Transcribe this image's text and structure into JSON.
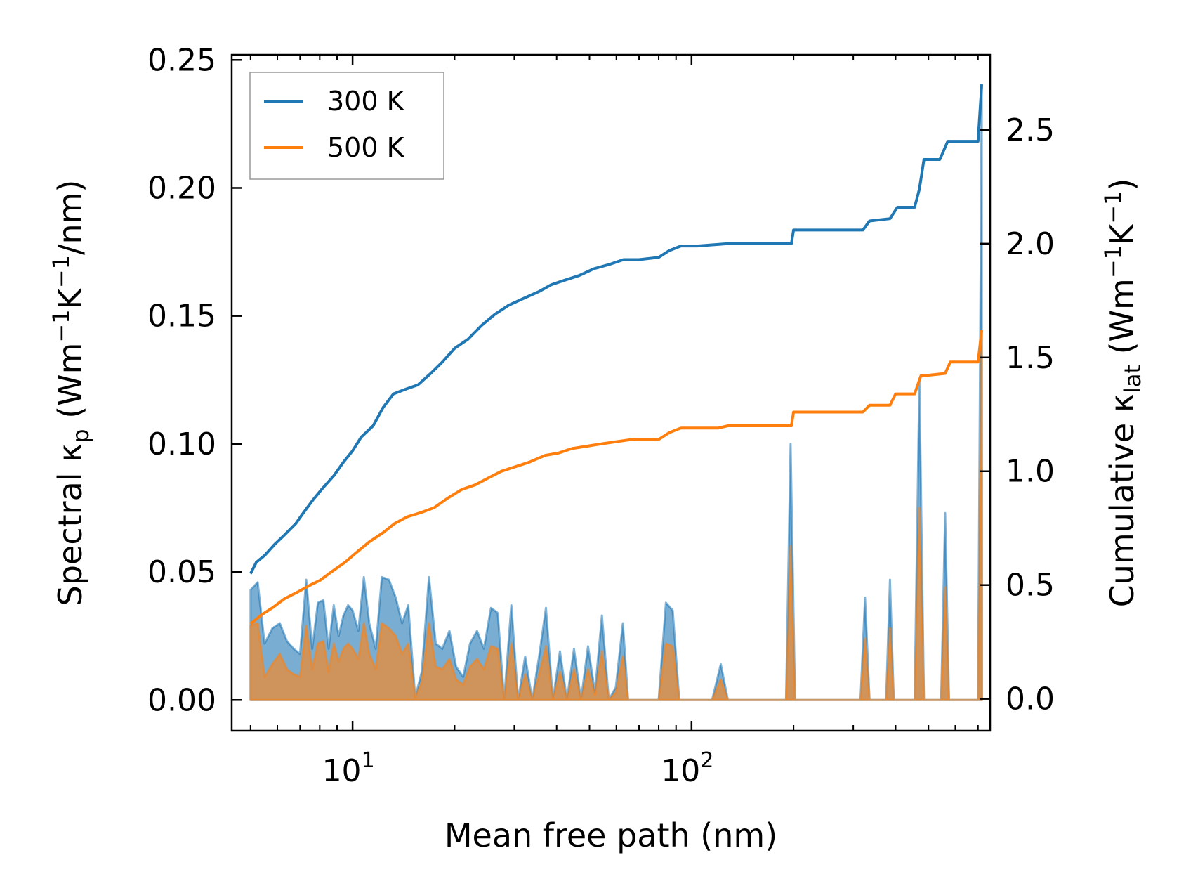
{
  "chart_data": {
    "type": "line",
    "xscale": "log",
    "xlim": [
      4.4,
      760
    ],
    "xlabel": "Mean free path (nm)",
    "x_ticks": [
      {
        "value": 10,
        "label": "10",
        "exp": "1"
      },
      {
        "value": 100,
        "label": "10",
        "exp": "2"
      }
    ],
    "left_axis": {
      "label_main": "Spectral κ",
      "label_sub": "p",
      "label_rest": " (Wm",
      "label_sup1": "−1",
      "label_mid": "K",
      "label_sup2": "−1",
      "label_end": "/nm)",
      "ylim": [
        -0.012,
        0.252
      ],
      "ticks": [
        {
          "value": 0.0,
          "label": "0.00"
        },
        {
          "value": 0.05,
          "label": "0.05"
        },
        {
          "value": 0.1,
          "label": "0.10"
        },
        {
          "value": 0.15,
          "label": "0.15"
        },
        {
          "value": 0.2,
          "label": "0.20"
        },
        {
          "value": 0.25,
          "label": "0.25"
        }
      ]
    },
    "right_axis": {
      "label_main": "Cumulative κ",
      "label_sub": "lat",
      "label_rest": " (Wm",
      "label_sup1": "−1",
      "label_mid": "K",
      "label_sup2": "−1",
      "label_end": ")",
      "ylim": [
        -0.14,
        2.83
      ],
      "ticks": [
        {
          "value": 0.0,
          "label": "0.0"
        },
        {
          "value": 0.5,
          "label": "0.5"
        },
        {
          "value": 1.0,
          "label": "1.0"
        },
        {
          "value": 1.5,
          "label": "1.5"
        },
        {
          "value": 2.0,
          "label": "2.0"
        },
        {
          "value": 2.5,
          "label": "2.5"
        }
      ]
    },
    "legend": {
      "position": "top-left"
    },
    "colors": {
      "s300": "#1f77b4",
      "s500": "#ff7f0e",
      "spec500_fill": "#d7914e"
    },
    "series": [
      {
        "name": "300 K",
        "color": "#1f77b4",
        "axis": "right",
        "kind": "cumulative",
        "points": [
          [
            5.0,
            0.55
          ],
          [
            5.2,
            0.6
          ],
          [
            5.5,
            0.63
          ],
          [
            5.9,
            0.68
          ],
          [
            6.3,
            0.72
          ],
          [
            6.8,
            0.77
          ],
          [
            7.1,
            0.81
          ],
          [
            7.6,
            0.87
          ],
          [
            8.1,
            0.92
          ],
          [
            8.8,
            0.98
          ],
          [
            9.4,
            1.04
          ],
          [
            10.0,
            1.09
          ],
          [
            10.6,
            1.15
          ],
          [
            11.5,
            1.2
          ],
          [
            12.3,
            1.28
          ],
          [
            13.2,
            1.34
          ],
          [
            14.3,
            1.36
          ],
          [
            15.6,
            1.38
          ],
          [
            17.0,
            1.43
          ],
          [
            18.4,
            1.48
          ],
          [
            20.0,
            1.54
          ],
          [
            21.9,
            1.58
          ],
          [
            24.0,
            1.64
          ],
          [
            26.3,
            1.69
          ],
          [
            28.9,
            1.73
          ],
          [
            32.0,
            1.76
          ],
          [
            35.5,
            1.79
          ],
          [
            38.6,
            1.82
          ],
          [
            42.3,
            1.84
          ],
          [
            46.6,
            1.86
          ],
          [
            51.5,
            1.89
          ],
          [
            57.5,
            1.91
          ],
          [
            63.0,
            1.93
          ],
          [
            70.0,
            1.93
          ],
          [
            80.0,
            1.94
          ],
          [
            86.0,
            1.97
          ],
          [
            93.0,
            1.99
          ],
          [
            104.0,
            1.99
          ],
          [
            128.0,
            2.0
          ],
          [
            160.0,
            2.0
          ],
          [
            197.0,
            2.0
          ],
          [
            200.0,
            2.06
          ],
          [
            250.0,
            2.06
          ],
          [
            320.0,
            2.06
          ],
          [
            335.0,
            2.1
          ],
          [
            385.0,
            2.11
          ],
          [
            405.0,
            2.16
          ],
          [
            455.0,
            2.16
          ],
          [
            470.0,
            2.24
          ],
          [
            485.0,
            2.37
          ],
          [
            540.0,
            2.37
          ],
          [
            570.0,
            2.45
          ],
          [
            700.0,
            2.45
          ],
          [
            718.0,
            2.7
          ]
        ]
      },
      {
        "name": "500 K",
        "color": "#ff7f0e",
        "axis": "right",
        "kind": "cumulative",
        "points": [
          [
            5.0,
            0.33
          ],
          [
            5.4,
            0.37
          ],
          [
            5.8,
            0.4
          ],
          [
            6.3,
            0.44
          ],
          [
            6.9,
            0.47
          ],
          [
            7.5,
            0.5
          ],
          [
            8.0,
            0.52
          ],
          [
            8.7,
            0.56
          ],
          [
            9.5,
            0.6
          ],
          [
            10.2,
            0.64
          ],
          [
            11.2,
            0.69
          ],
          [
            12.3,
            0.73
          ],
          [
            13.3,
            0.77
          ],
          [
            14.5,
            0.8
          ],
          [
            16.0,
            0.82
          ],
          [
            17.4,
            0.84
          ],
          [
            19.0,
            0.88
          ],
          [
            21.0,
            0.92
          ],
          [
            23.0,
            0.94
          ],
          [
            25.1,
            0.97
          ],
          [
            27.5,
            1.0
          ],
          [
            30.2,
            1.02
          ],
          [
            33.2,
            1.04
          ],
          [
            37.0,
            1.07
          ],
          [
            40.5,
            1.08
          ],
          [
            44.4,
            1.1
          ],
          [
            49.0,
            1.11
          ],
          [
            54.0,
            1.12
          ],
          [
            60.0,
            1.13
          ],
          [
            67.0,
            1.14
          ],
          [
            80.0,
            1.14
          ],
          [
            86.0,
            1.17
          ],
          [
            93.0,
            1.19
          ],
          [
            120.0,
            1.19
          ],
          [
            128.0,
            1.2
          ],
          [
            197.0,
            1.2
          ],
          [
            200.0,
            1.26
          ],
          [
            320.0,
            1.26
          ],
          [
            335.0,
            1.29
          ],
          [
            385.0,
            1.29
          ],
          [
            400.0,
            1.34
          ],
          [
            455.0,
            1.34
          ],
          [
            475.0,
            1.42
          ],
          [
            485.0,
            1.42
          ],
          [
            560.0,
            1.43
          ],
          [
            580.0,
            1.48
          ],
          [
            700.0,
            1.48
          ],
          [
            718.0,
            1.62
          ]
        ]
      },
      {
        "name": "300 K spectral",
        "color": "#1f77b4",
        "axis": "left",
        "kind": "spectral",
        "points": [
          [
            5.0,
            0.043
          ],
          [
            5.25,
            0.046
          ],
          [
            5.5,
            0.022
          ],
          [
            5.8,
            0.028
          ],
          [
            6.1,
            0.03
          ],
          [
            6.4,
            0.023
          ],
          [
            6.7,
            0.02
          ],
          [
            7.0,
            0.018
          ],
          [
            7.3,
            0.047
          ],
          [
            7.6,
            0.02
          ],
          [
            7.9,
            0.038
          ],
          [
            8.2,
            0.039
          ],
          [
            8.5,
            0.02
          ],
          [
            8.8,
            0.037
          ],
          [
            9.1,
            0.025
          ],
          [
            9.4,
            0.033
          ],
          [
            9.7,
            0.037
          ],
          [
            10.0,
            0.035
          ],
          [
            10.4,
            0.027
          ],
          [
            10.8,
            0.048
          ],
          [
            11.2,
            0.03
          ],
          [
            11.7,
            0.02
          ],
          [
            12.2,
            0.048
          ],
          [
            12.8,
            0.047
          ],
          [
            13.4,
            0.04
          ],
          [
            14.0,
            0.03
          ],
          [
            14.6,
            0.037
          ],
          [
            15.3,
            0.001
          ],
          [
            16.0,
            0.011
          ],
          [
            16.8,
            0.048
          ],
          [
            17.6,
            0.022
          ],
          [
            18.4,
            0.02
          ],
          [
            19.3,
            0.027
          ],
          [
            20.2,
            0.013
          ],
          [
            21.2,
            0.009
          ],
          [
            22.2,
            0.022
          ],
          [
            23.3,
            0.027
          ],
          [
            24.4,
            0.02
          ],
          [
            25.6,
            0.036
          ],
          [
            26.8,
            0.034
          ],
          [
            28.0,
            0.0
          ],
          [
            29.4,
            0.037
          ],
          [
            30.8,
            0.0
          ],
          [
            32.3,
            0.017
          ],
          [
            33.9,
            0.0
          ],
          [
            35.5,
            0.017
          ],
          [
            37.2,
            0.036
          ],
          [
            39.0,
            0.0
          ],
          [
            40.9,
            0.019
          ],
          [
            42.9,
            0.0
          ],
          [
            45.0,
            0.02
          ],
          [
            47.2,
            0.0
          ],
          [
            49.5,
            0.021
          ],
          [
            51.9,
            0.003
          ],
          [
            54.4,
            0.033
          ],
          [
            57.0,
            0.0
          ],
          [
            59.8,
            0.005
          ],
          [
            62.7,
            0.03
          ],
          [
            65.0,
            0.0
          ],
          [
            80.0,
            0.0
          ],
          [
            84.0,
            0.038
          ],
          [
            88.0,
            0.035
          ],
          [
            92.0,
            0.0
          ],
          [
            115.0,
            0.0
          ],
          [
            122.0,
            0.014
          ],
          [
            128.0,
            0.0
          ],
          [
            190.0,
            0.0
          ],
          [
            196.0,
            0.1
          ],
          [
            202.0,
            0.0
          ],
          [
            315.0,
            0.0
          ],
          [
            325.0,
            0.04
          ],
          [
            335.0,
            0.0
          ],
          [
            375.0,
            0.0
          ],
          [
            385.0,
            0.047
          ],
          [
            395.0,
            0.0
          ],
          [
            455.0,
            0.0
          ],
          [
            470.0,
            0.125
          ],
          [
            485.0,
            0.0
          ],
          [
            545.0,
            0.0
          ],
          [
            560.0,
            0.073
          ],
          [
            575.0,
            0.0
          ],
          [
            700.0,
            0.0
          ],
          [
            718.0,
            0.24
          ],
          [
            719.0,
            0.0
          ]
        ]
      },
      {
        "name": "500 K spectral",
        "color": "#ff7f0e",
        "axis": "left",
        "kind": "spectral",
        "points": [
          [
            5.0,
            0.029
          ],
          [
            5.25,
            0.03
          ],
          [
            5.5,
            0.009
          ],
          [
            5.8,
            0.014
          ],
          [
            6.1,
            0.018
          ],
          [
            6.4,
            0.012
          ],
          [
            6.7,
            0.01
          ],
          [
            7.0,
            0.009
          ],
          [
            7.3,
            0.029
          ],
          [
            7.6,
            0.012
          ],
          [
            7.9,
            0.022
          ],
          [
            8.2,
            0.023
          ],
          [
            8.5,
            0.011
          ],
          [
            8.8,
            0.022
          ],
          [
            9.1,
            0.015
          ],
          [
            9.4,
            0.02
          ],
          [
            9.7,
            0.022
          ],
          [
            10.0,
            0.02
          ],
          [
            10.4,
            0.016
          ],
          [
            10.8,
            0.03
          ],
          [
            11.2,
            0.018
          ],
          [
            11.7,
            0.012
          ],
          [
            12.2,
            0.03
          ],
          [
            12.8,
            0.028
          ],
          [
            13.4,
            0.025
          ],
          [
            14.0,
            0.018
          ],
          [
            14.6,
            0.022
          ],
          [
            15.3,
            0.001
          ],
          [
            16.0,
            0.007
          ],
          [
            16.8,
            0.03
          ],
          [
            17.6,
            0.013
          ],
          [
            18.4,
            0.012
          ],
          [
            19.3,
            0.016
          ],
          [
            20.2,
            0.008
          ],
          [
            21.2,
            0.006
          ],
          [
            22.2,
            0.013
          ],
          [
            23.3,
            0.016
          ],
          [
            24.4,
            0.012
          ],
          [
            25.6,
            0.021
          ],
          [
            26.8,
            0.02
          ],
          [
            28.0,
            0.0
          ],
          [
            29.4,
            0.022
          ],
          [
            30.8,
            0.0
          ],
          [
            32.3,
            0.01
          ],
          [
            33.9,
            0.0
          ],
          [
            35.5,
            0.01
          ],
          [
            37.2,
            0.021
          ],
          [
            39.0,
            0.0
          ],
          [
            40.9,
            0.011
          ],
          [
            42.9,
            0.0
          ],
          [
            45.0,
            0.012
          ],
          [
            47.2,
            0.0
          ],
          [
            49.5,
            0.012
          ],
          [
            51.9,
            0.002
          ],
          [
            54.4,
            0.019
          ],
          [
            57.0,
            0.0
          ],
          [
            59.8,
            0.003
          ],
          [
            62.7,
            0.017
          ],
          [
            65.0,
            0.0
          ],
          [
            80.0,
            0.0
          ],
          [
            84.0,
            0.022
          ],
          [
            88.0,
            0.021
          ],
          [
            92.0,
            0.0
          ],
          [
            115.0,
            0.0
          ],
          [
            122.0,
            0.008
          ],
          [
            128.0,
            0.0
          ],
          [
            190.0,
            0.0
          ],
          [
            196.0,
            0.06
          ],
          [
            202.0,
            0.0
          ],
          [
            315.0,
            0.0
          ],
          [
            325.0,
            0.024
          ],
          [
            335.0,
            0.0
          ],
          [
            375.0,
            0.0
          ],
          [
            385.0,
            0.028
          ],
          [
            395.0,
            0.0
          ],
          [
            455.0,
            0.0
          ],
          [
            470.0,
            0.075
          ],
          [
            485.0,
            0.0
          ],
          [
            545.0,
            0.0
          ],
          [
            560.0,
            0.044
          ],
          [
            575.0,
            0.0
          ],
          [
            700.0,
            0.0
          ],
          [
            718.0,
            0.144
          ],
          [
            719.0,
            0.0
          ]
        ]
      }
    ]
  }
}
